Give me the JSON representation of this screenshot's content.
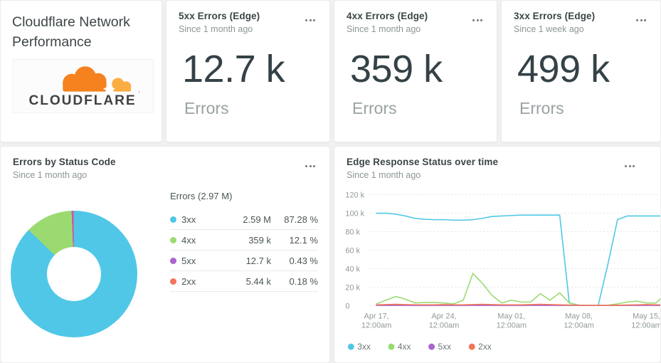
{
  "page": {
    "background": "#f0f1f1",
    "card_background": "#ffffff"
  },
  "title_card": {
    "title": "Cloudflare Network Performance",
    "logo_wordmark": "CLOUDFLARE",
    "logo_orange": "#f6821f",
    "logo_light_orange": "#fbad41"
  },
  "stat_cards": [
    {
      "title": "5xx Errors (Edge)",
      "subtitle": "Since 1 month ago",
      "value": "12.7 k",
      "unit": "Errors"
    },
    {
      "title": "4xx Errors (Edge)",
      "subtitle": "Since 1 month ago",
      "value": "359 k",
      "unit": "Errors"
    },
    {
      "title": "3xx Errors (Edge)",
      "subtitle": "Since 1 week ago",
      "value": "499 k",
      "unit": "Errors"
    }
  ],
  "donut_card": {
    "title": "Errors by Status Code",
    "subtitle": "Since 1 month ago",
    "table_title": "Errors (2.97 M)"
  },
  "chart_card": {
    "title": "Edge Response Status over time",
    "subtitle": "Since 1 month ago"
  },
  "chart_data": [
    {
      "type": "pie",
      "variant": "donut",
      "title": "Errors by Status Code",
      "total_label": "Errors (2.97 M)",
      "segments": [
        {
          "label": "3xx",
          "value": "2.59 M",
          "percent": "87.28 %",
          "pct": 87.28,
          "color": "#50c7e7"
        },
        {
          "label": "4xx",
          "value": "359 k",
          "percent": "12.1 %",
          "pct": 12.1,
          "color": "#9bda70"
        },
        {
          "label": "5xx",
          "value": "12.7 k",
          "percent": "0.43 %",
          "pct": 0.43,
          "color": "#a864cf"
        },
        {
          "label": "2xx",
          "value": "5.44 k",
          "percent": "0.18 %",
          "pct": 0.18,
          "color": "#f2745a"
        }
      ]
    },
    {
      "type": "line",
      "title": "Edge Response Status over time",
      "values_scale": "thousands of errors per day",
      "ymax_k": 120,
      "ylim": [
        0,
        120000
      ],
      "grid": "dashed-horizontal",
      "legend_position": "bottom-left",
      "y_ticks": [
        {
          "v": 120,
          "label": "120 k"
        },
        {
          "v": 100,
          "label": "100 k"
        },
        {
          "v": 80,
          "label": "80 k"
        },
        {
          "v": 60,
          "label": "60 k"
        },
        {
          "v": 40,
          "label": "40 k"
        },
        {
          "v": 20,
          "label": "20 k"
        },
        {
          "v": 0,
          "label": "0"
        }
      ],
      "x_ticks": [
        {
          "day": 0,
          "line1": "Apr 17,",
          "line2": "12:00am"
        },
        {
          "day": 7,
          "line1": "Apr 24,",
          "line2": "12:00am"
        },
        {
          "day": 14,
          "line1": "May 01,",
          "line2": "12:00am"
        },
        {
          "day": 21,
          "line1": "May 08,",
          "line2": "12:00am"
        },
        {
          "day": 28,
          "line1": "May 15,",
          "line2": "12:00am"
        }
      ],
      "series": [
        {
          "name": "3xx",
          "color": "#50c7e7",
          "values_k": [
            100,
            100,
            99,
            97,
            94.5,
            93.5,
            93,
            93,
            92.5,
            92.5,
            93,
            94.5,
            96.5,
            97,
            97.5,
            98,
            98,
            98,
            98,
            98,
            3,
            0.5,
            0.3,
            0.3,
            45,
            93,
            97,
            97,
            97,
            97,
            97
          ]
        },
        {
          "name": "4xx",
          "color": "#9bda70",
          "values_k": [
            2,
            6,
            10,
            7,
            3,
            3.5,
            3.5,
            3,
            2,
            6,
            35,
            24,
            11,
            3,
            6,
            4,
            4,
            13,
            6,
            14,
            3,
            0.4,
            0.3,
            0.3,
            0.5,
            2,
            4,
            5,
            3,
            3,
            13
          ]
        },
        {
          "name": "5xx",
          "color": "#a864cf",
          "values_k": [
            0.4,
            0.4,
            0.4,
            0.4,
            0.4,
            0.4,
            0.4,
            0.4,
            0.4,
            0.4,
            0.4,
            0.4,
            0.4,
            0.4,
            0.4,
            0.4,
            0.4,
            0.4,
            0.4,
            0.4,
            0.4,
            0.3,
            0.3,
            0.3,
            0.3,
            0.3,
            0.4,
            0.4,
            0.4,
            0.4,
            0.4
          ]
        },
        {
          "name": "2xx",
          "color": "#f2745a",
          "values_k": [
            1,
            1.2,
            1.5,
            1.2,
            1,
            1,
            1,
            1.2,
            1,
            1,
            1.2,
            1.5,
            1.2,
            1,
            1,
            1,
            1.2,
            1.5,
            1.2,
            1,
            0.8,
            0.5,
            0.4,
            0.4,
            0.4,
            0.5,
            0.8,
            1,
            1.2,
            1,
            1
          ]
        }
      ]
    }
  ]
}
